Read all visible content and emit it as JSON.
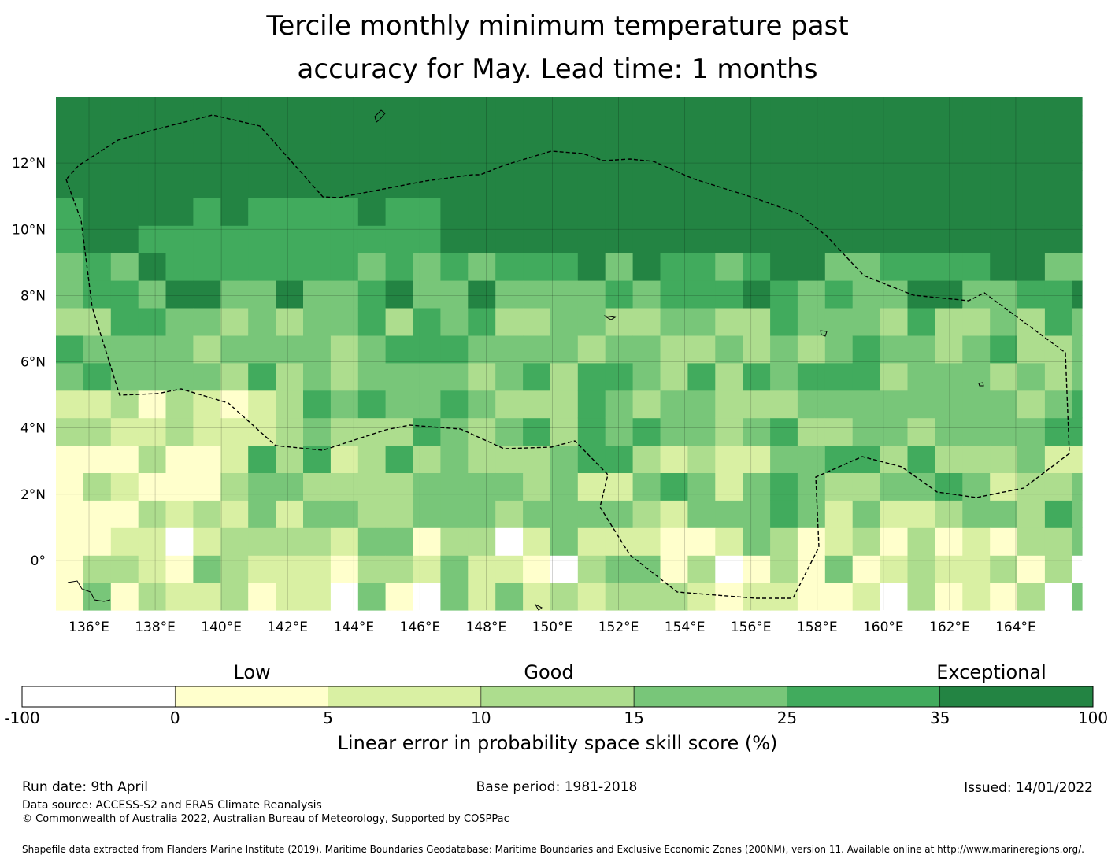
{
  "title": {
    "line1": "Tercile monthly minimum temperature past",
    "line2": "accuracy for May. Lead time: 1 months"
  },
  "map": {
    "lon_range": [
      135,
      166
    ],
    "lat_range": [
      -1.5,
      14
    ],
    "x_ticks": [
      {
        "lon": 136,
        "label": "136°E"
      },
      {
        "lon": 138,
        "label": "138°E"
      },
      {
        "lon": 140,
        "label": "140°E"
      },
      {
        "lon": 142,
        "label": "142°E"
      },
      {
        "lon": 144,
        "label": "144°E"
      },
      {
        "lon": 146,
        "label": "146°E"
      },
      {
        "lon": 148,
        "label": "148°E"
      },
      {
        "lon": 150,
        "label": "150°E"
      },
      {
        "lon": 152,
        "label": "152°E"
      },
      {
        "lon": 154,
        "label": "154°E"
      },
      {
        "lon": 156,
        "label": "156°E"
      },
      {
        "lon": 158,
        "label": "158°E"
      },
      {
        "lon": 160,
        "label": "160°E"
      },
      {
        "lon": 162,
        "label": "162°E"
      },
      {
        "lon": 164,
        "label": "164°E"
      }
    ],
    "y_ticks": [
      {
        "lat": 12,
        "label": "12°N"
      },
      {
        "lat": 10,
        "label": "10°N"
      },
      {
        "lat": 8,
        "label": "8°N"
      },
      {
        "lat": 6,
        "label": "6°N"
      },
      {
        "lat": 4,
        "label": "4°N"
      },
      {
        "lat": 2,
        "label": "2°N"
      },
      {
        "lat": 0,
        "label": "0°"
      }
    ],
    "grid_step_deg": 0.83,
    "description": "Linear error in probability space skill score per grid cell; dashed line marks the exclusive economic zone boundary."
  },
  "colorbar": {
    "category_labels": [
      {
        "text": "Low",
        "anchor_value": "0-5"
      },
      {
        "text": "Good",
        "anchor_value": "10-15"
      },
      {
        "text": "Exceptional",
        "anchor_value": "35-100"
      }
    ],
    "boundaries": [
      "-100",
      "0",
      "5",
      "10",
      "15",
      "25",
      "35",
      "100"
    ],
    "colors": [
      "#ffffff",
      "#ffffcc",
      "#d9f0a3",
      "#addd8e",
      "#78c679",
      "#41ab5d",
      "#238443"
    ],
    "label": "Linear error in probability space skill score (%)"
  },
  "footer": {
    "run_date": "Run date: 9th April",
    "base_period": "Base period: 1981-2018",
    "issued": "Issued: 14/01/2022",
    "data_source": "Data source: ACCESS-S2 and ERA5 Climate Reanalysis",
    "copyright": "© Commonwealth of Australia 2022, Australian Bureau of Meteorology, Supported by COSPPac",
    "shapefile": "Shapefile data extracted from Flanders Marine Institute (2019), Maritime Boundaries Geodatabase: Maritime Boundaries and Exclusive Economic Zones (200NM), version 11. Available online at http://www.marineregions.org/."
  }
}
